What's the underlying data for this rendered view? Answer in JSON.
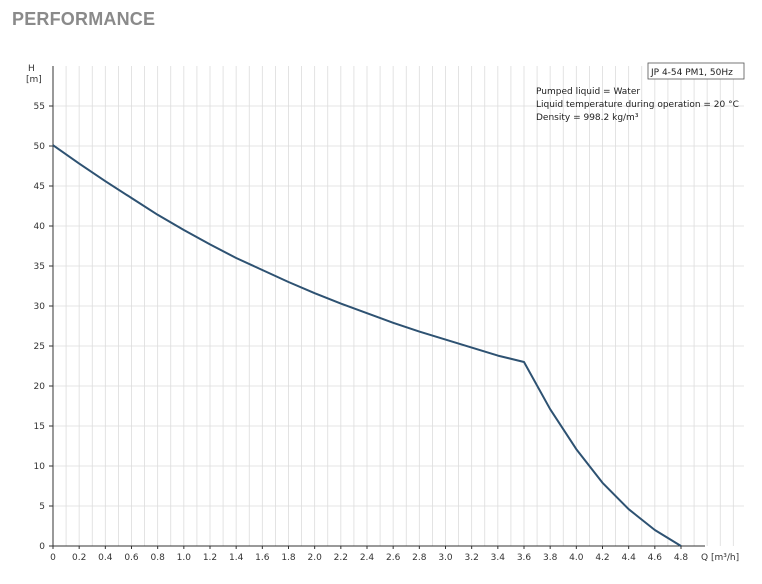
{
  "heading": "PERFORMANCE",
  "chart_data": {
    "type": "line",
    "title": "JP 4-54 PM1, 50Hz",
    "ylabel_symbol": "H",
    "ylabel_unit": "[m]",
    "xlabel": "Q [m³/h]",
    "xlim": [
      0,
      5.25
    ],
    "ylim": [
      0,
      60
    ],
    "x_ticks": [
      "0",
      "0.2",
      "0.4",
      "0.6",
      "0.8",
      "1.0",
      "1.2",
      "1.4",
      "1.6",
      "1.8",
      "2.0",
      "2.2",
      "2.4",
      "2.6",
      "2.8",
      "3.0",
      "3.2",
      "3.4",
      "3.6",
      "3.8",
      "4.0",
      "4.2",
      "4.4",
      "4.6",
      "4.8"
    ],
    "y_ticks": [
      "0",
      "5",
      "10",
      "15",
      "20",
      "25",
      "30",
      "35",
      "40",
      "45",
      "50",
      "55"
    ],
    "info_lines": [
      "Pumped liquid = Water",
      "Liquid temperature during operation = 20 °C",
      "Density = 998.2 kg/m³"
    ],
    "series": [
      {
        "color": "#2e5272",
        "x": [
          0,
          0.2,
          0.4,
          0.6,
          0.8,
          1.0,
          1.2,
          1.4,
          1.6,
          1.8,
          2.0,
          2.2,
          2.4,
          2.6,
          2.8,
          3.0,
          3.2,
          3.4,
          3.6,
          3.8,
          4.0,
          4.2,
          4.4,
          4.6,
          4.8
        ],
        "y": [
          50.1,
          47.8,
          45.6,
          43.5,
          41.4,
          39.5,
          37.7,
          36.0,
          34.5,
          33.0,
          31.6,
          30.3,
          29.1,
          27.9,
          26.8,
          25.8,
          24.8,
          23.8,
          23.0,
          17.1,
          12.1,
          7.9,
          4.6,
          2.0,
          0.0
        ]
      }
    ],
    "grid": true
  }
}
